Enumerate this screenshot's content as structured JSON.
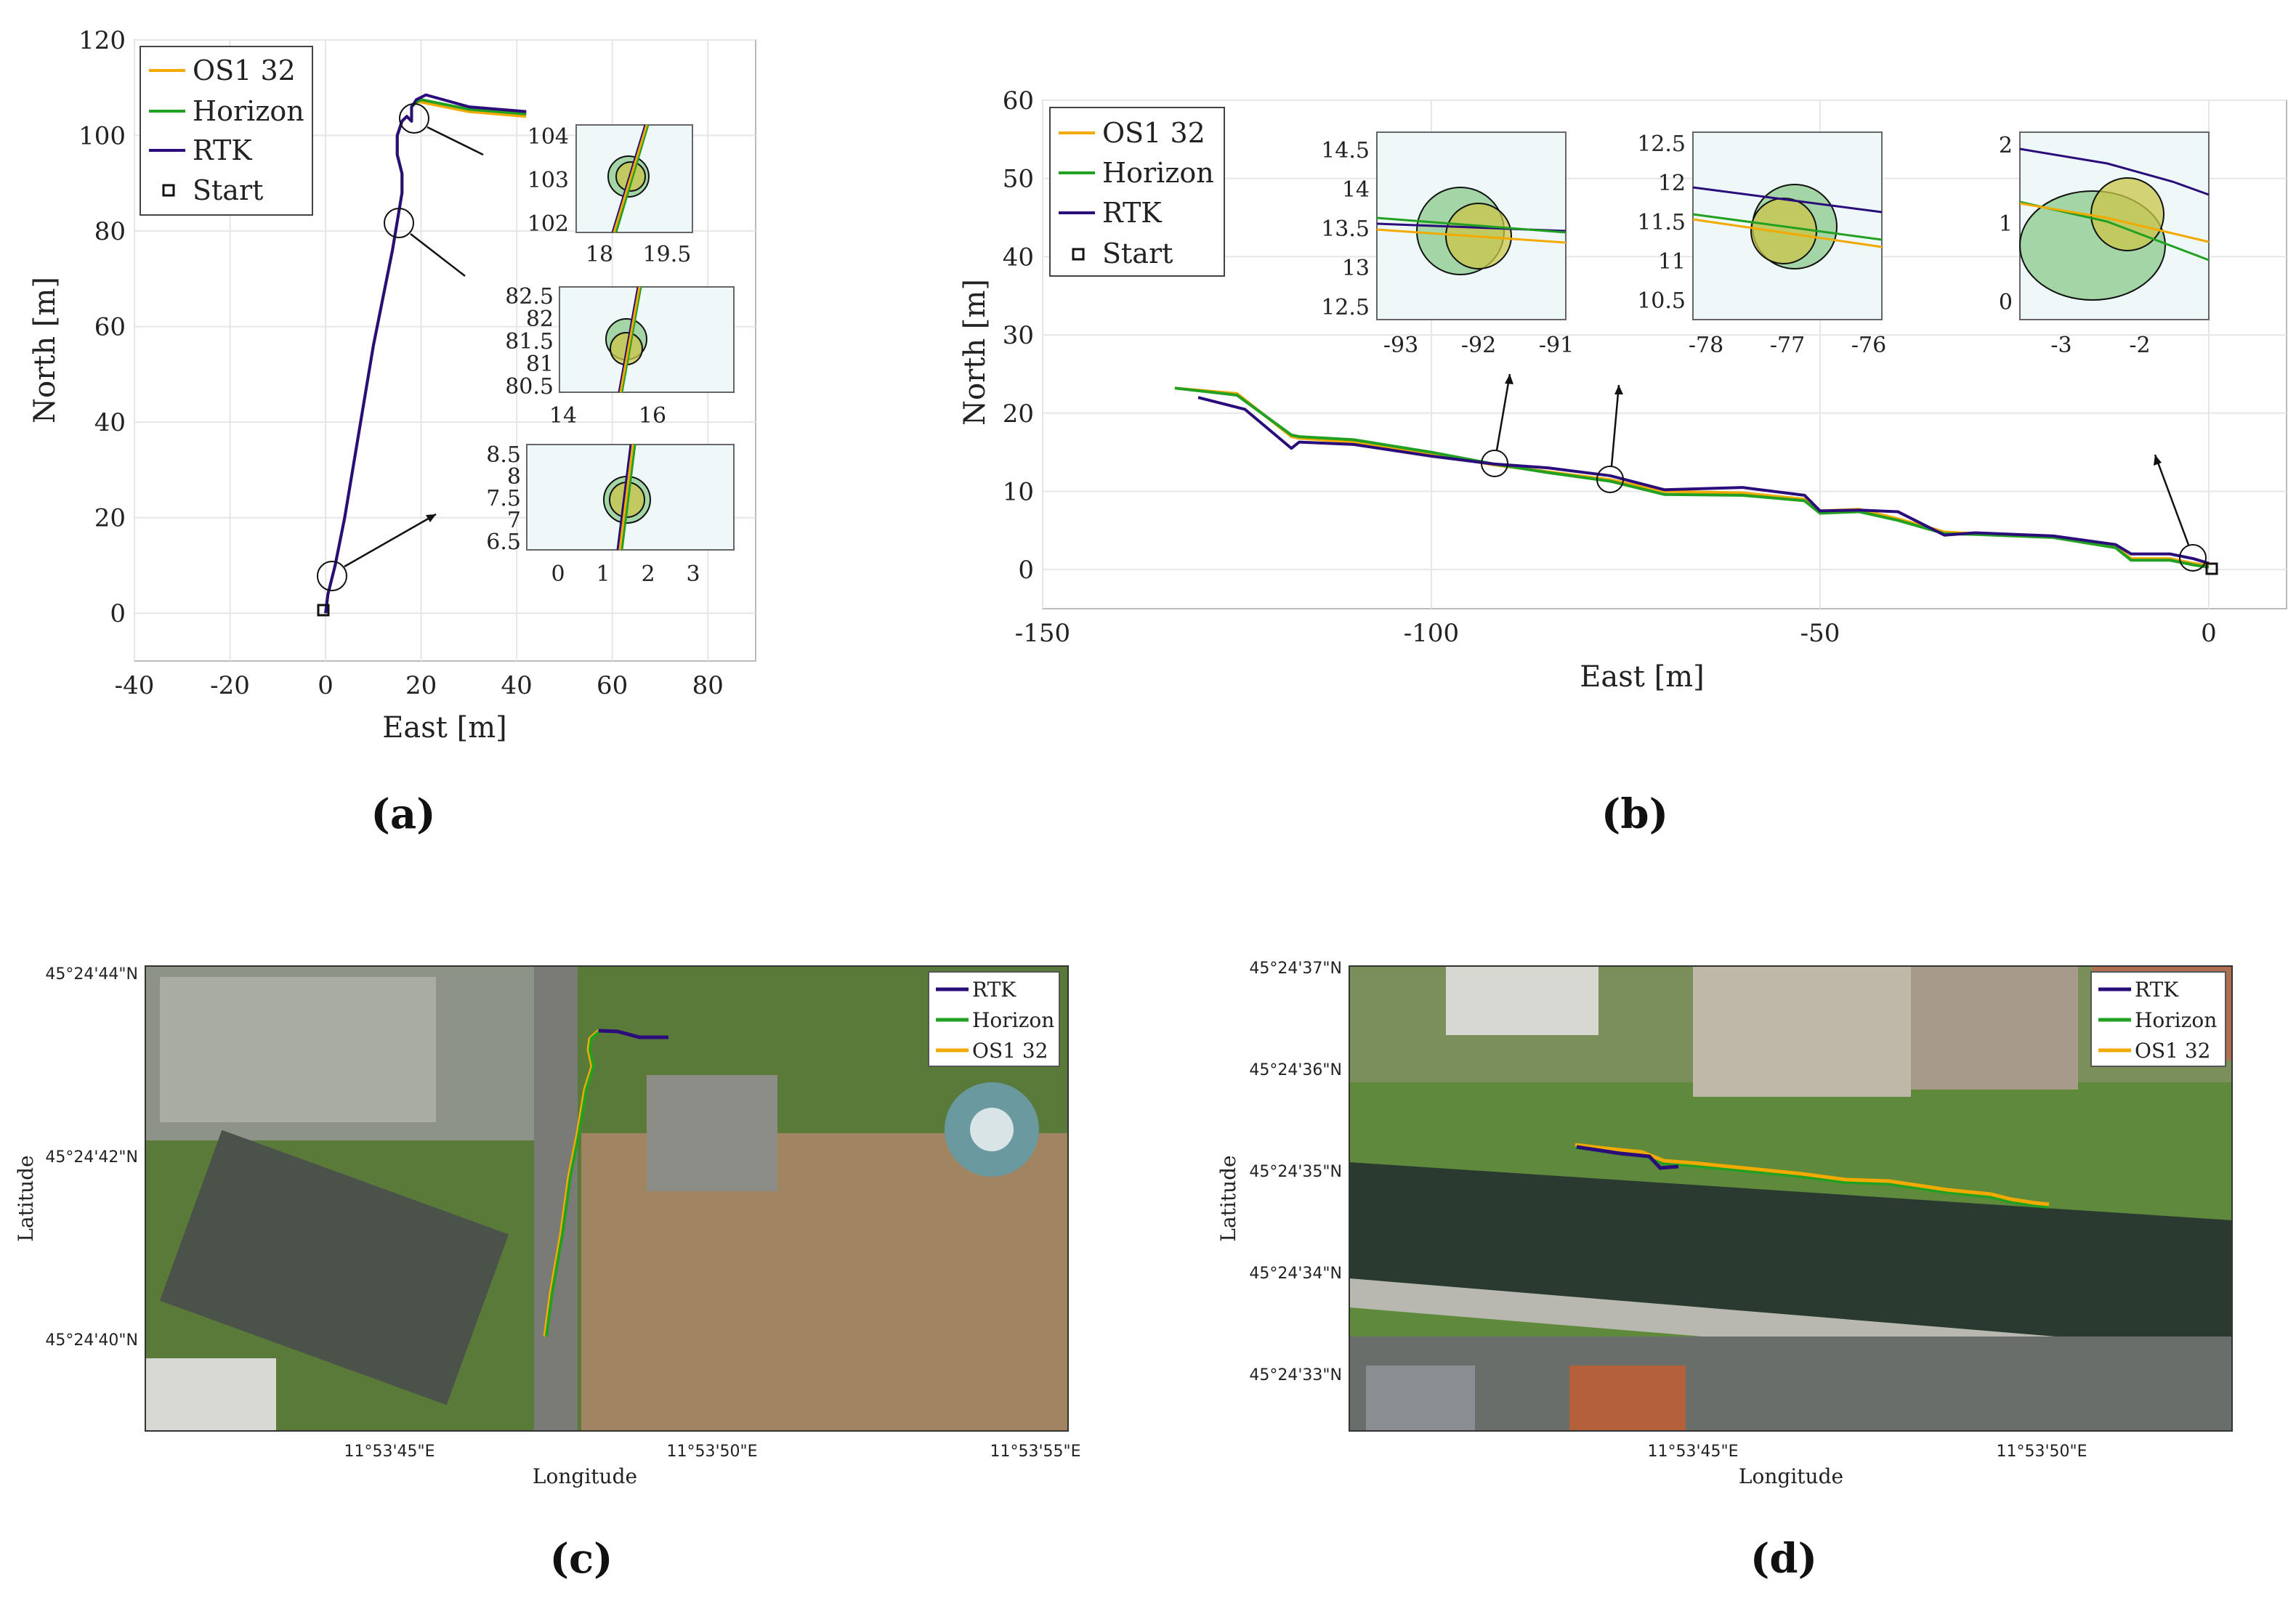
{
  "colors": {
    "os1": "#f2a900",
    "horizon": "#22a022",
    "rtk": "#2a0d7a",
    "insetbg": "#eef8f8",
    "grid": "#e6e6e6"
  },
  "panel_labels": [
    "(a)",
    "(b)",
    "(c)",
    "(d)"
  ],
  "chart_data": [
    {
      "type": "line",
      "panel": "(a)",
      "xlabel": "East [m]",
      "ylabel": "North [m]",
      "xlim": [
        -40,
        90
      ],
      "ylim": [
        -10,
        120
      ],
      "xticks": [
        "-40",
        "-20",
        "0",
        "20",
        "40",
        "60",
        "80"
      ],
      "yticks": [
        "0",
        "20",
        "40",
        "60",
        "80",
        "100",
        "120"
      ],
      "grid": true,
      "legend": [
        "OS1 32",
        "Horizon",
        "RTK",
        "Start"
      ],
      "legend_position": "top-left",
      "start": [
        0,
        0
      ],
      "series": [
        {
          "name": "OS1 32",
          "x": [
            0,
            0.5,
            2,
            4,
            6,
            8,
            10,
            12,
            14,
            15,
            16,
            16,
            15,
            15,
            16,
            17,
            18,
            18,
            19,
            20,
            30,
            42
          ],
          "y": [
            0,
            4,
            10,
            20,
            32,
            44,
            56,
            66,
            76,
            82,
            88,
            92,
            96,
            100,
            103,
            104,
            103,
            106,
            107,
            107,
            105,
            104
          ]
        },
        {
          "name": "Horizon",
          "x": [
            0,
            0.5,
            2,
            4,
            6,
            8,
            10,
            12,
            14,
            15,
            16,
            16,
            15,
            15,
            16,
            17,
            18,
            18,
            19,
            20,
            30,
            42
          ],
          "y": [
            0,
            4,
            10,
            20,
            32,
            44,
            56,
            66,
            76,
            82,
            88,
            92,
            96,
            100,
            103,
            104,
            103,
            106,
            107,
            107.5,
            105.5,
            104.5
          ]
        },
        {
          "name": "RTK",
          "x": [
            0,
            0.5,
            2,
            4,
            6,
            8,
            10,
            12,
            14,
            15,
            16,
            16,
            15,
            15,
            16,
            17,
            18,
            18,
            19,
            21,
            30,
            42
          ],
          "y": [
            0,
            4,
            10,
            20,
            32,
            44,
            56,
            66,
            76,
            82,
            88,
            92,
            96,
            100,
            103,
            104,
            103,
            106,
            107.5,
            108.5,
            106,
            105
          ]
        }
      ],
      "insets": [
        {
          "xticks": [
            "18",
            "19.5"
          ],
          "yticks": [
            "102",
            "103",
            "104"
          ]
        },
        {
          "xticks": [
            "14",
            "16"
          ],
          "yticks": [
            "80.5",
            "81",
            "81.5",
            "82",
            "82.5"
          ]
        },
        {
          "xticks": [
            "0",
            "1",
            "2",
            "3"
          ],
          "yticks": [
            "6.5",
            "7",
            "7.5",
            "8",
            "8.5"
          ]
        }
      ]
    },
    {
      "type": "line",
      "panel": "(b)",
      "xlabel": "East [m]",
      "ylabel": "North [m]",
      "xlim": [
        -150,
        10
      ],
      "ylim": [
        -5,
        60
      ],
      "xticks": [
        "-150",
        "-100",
        "-50",
        "0"
      ],
      "yticks": [
        "0",
        "10",
        "20",
        "30",
        "40",
        "50",
        "60"
      ],
      "grid": true,
      "legend": [
        "OS1 32",
        "Horizon",
        "RTK",
        "Start"
      ],
      "legend_position": "top-left",
      "start": [
        0,
        0
      ],
      "series": [
        {
          "name": "OS1 32",
          "x": [
            -133,
            -125,
            -118,
            -117,
            -110,
            -100,
            -92,
            -85,
            -77,
            -70,
            -60,
            -52,
            -50,
            -45,
            -40,
            -34,
            -30,
            -20,
            -12,
            -10,
            -5,
            -2,
            0
          ],
          "y": [
            23.2,
            22.5,
            17,
            16.8,
            16.3,
            14.8,
            13.4,
            12.5,
            11.5,
            10,
            9.8,
            9,
            7.5,
            7.7,
            6.5,
            4.8,
            4.6,
            4.2,
            3,
            1.4,
            1.4,
            0.8,
            0.5
          ]
        },
        {
          "name": "Horizon",
          "x": [
            -133,
            -125,
            -118,
            -117,
            -110,
            -100,
            -92,
            -85,
            -77,
            -70,
            -60,
            -52,
            -50,
            -45,
            -40,
            -34,
            -30,
            -20,
            -12,
            -10,
            -5,
            -2,
            0
          ],
          "y": [
            23.2,
            22.3,
            17.2,
            17,
            16.6,
            15,
            13.5,
            12.4,
            11.3,
            9.6,
            9.5,
            8.8,
            7.2,
            7.4,
            6.3,
            4.6,
            4.5,
            4.1,
            2.8,
            1.2,
            1.2,
            0.6,
            0.3
          ]
        },
        {
          "name": "RTK",
          "x": [
            -130,
            -124,
            -118,
            -117,
            -110,
            -100,
            -92,
            -85,
            -77,
            -70,
            -60,
            -52,
            -50,
            -45,
            -40,
            -34,
            -30,
            -20,
            -12,
            -10,
            -5,
            -2,
            0
          ],
          "y": [
            22,
            20.5,
            15.5,
            16.3,
            16,
            14.5,
            13.5,
            13,
            12,
            10.2,
            10.5,
            9.5,
            7.5,
            7.6,
            7.4,
            4.4,
            4.7,
            4.3,
            3.2,
            2,
            2,
            1.4,
            0.8
          ]
        }
      ],
      "insets": [
        {
          "xticks": [
            "-93",
            "-92",
            "-91"
          ],
          "yticks": [
            "12.5",
            "13",
            "13.5",
            "14",
            "14.5"
          ]
        },
        {
          "xticks": [
            "-78",
            "-77",
            "-76"
          ],
          "yticks": [
            "10.5",
            "11",
            "11.5",
            "12",
            "12.5"
          ]
        },
        {
          "xticks": [
            "-3",
            "-2"
          ],
          "yticks": [
            "0",
            "1",
            "2"
          ]
        }
      ]
    }
  ],
  "maps": [
    {
      "panel": "(c)",
      "xlabel": "Longitude",
      "ylabel": "Latitude",
      "lat_ticks": [
        "45°24'44\"N",
        "45°24'42\"N",
        "45°24'40\"N"
      ],
      "lon_ticks": [
        "11°53'45\"E",
        "11°53'50\"E",
        "11°53'55\"E"
      ],
      "legend": [
        "RTK",
        "Horizon",
        "OS1 32"
      ]
    },
    {
      "panel": "(d)",
      "xlabel": "Longitude",
      "ylabel": "Latitude",
      "lat_ticks": [
        "45°24'37\"N",
        "45°24'36\"N",
        "45°24'35\"N",
        "45°24'34\"N",
        "45°24'33\"N"
      ],
      "lon_ticks": [
        "11°53'45\"E",
        "11°53'50\"E"
      ],
      "legend": [
        "RTK",
        "Horizon",
        "OS1 32"
      ]
    }
  ]
}
